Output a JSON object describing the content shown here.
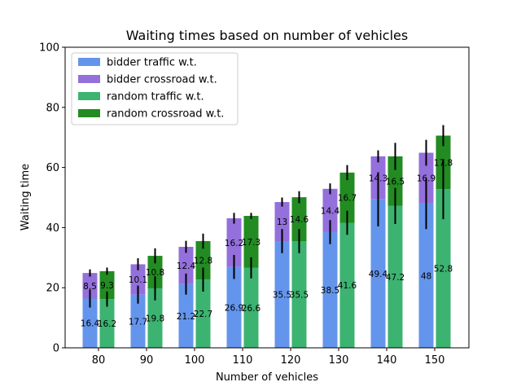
{
  "chart_data": {
    "type": "bar",
    "title": "Waiting times based on number of vehicles",
    "xlabel": "Number of vehicles",
    "ylabel": "Waiting time",
    "ylim": [
      0,
      100
    ],
    "yticks": [
      0,
      20,
      40,
      60,
      80,
      100
    ],
    "categories": [
      "80",
      "90",
      "100",
      "110",
      "120",
      "130",
      "140",
      "150"
    ],
    "legend_position": "upper-left",
    "grid": false,
    "groups": [
      {
        "name_bottom": "bidder traffic w.t.",
        "name_top": "bidder crossroad w.t.",
        "color_bottom": "#6495ED",
        "color_top": "#9370DB",
        "bottom_values": [
          16.4,
          17.7,
          21.2,
          26.9,
          35.5,
          38.5,
          49.4,
          48
        ],
        "top_values": [
          8.5,
          10.1,
          12.4,
          16.2,
          13,
          14.4,
          14.3,
          16.9
        ],
        "bottom_err": [
          3.0,
          3.0,
          3.5,
          4.0,
          4.0,
          4.0,
          9.0,
          8.5
        ],
        "top_err": [
          1.2,
          2.0,
          2.0,
          1.8,
          1.5,
          1.8,
          2.0,
          4.3
        ],
        "bottom_labels": [
          "16.4",
          "17.7",
          "21.2",
          "26.9",
          "35.5",
          "38.5",
          "49.4",
          "48"
        ],
        "top_labels": [
          "8.5",
          "10.1",
          "12.4",
          "16.2",
          "13",
          "14.4",
          "14.3",
          "16.9"
        ]
      },
      {
        "name_bottom": "random traffic w.t.",
        "name_top": "random crossroad w.t.",
        "color_bottom": "#3CB371",
        "color_top": "#228B22",
        "bottom_values": [
          16.2,
          19.8,
          22.7,
          26.6,
          35.5,
          41.6,
          47.2,
          52.8
        ],
        "top_values": [
          9.3,
          10.8,
          12.8,
          17.3,
          14.6,
          16.7,
          16.5,
          17.8
        ],
        "bottom_err": [
          2.5,
          4.0,
          4.0,
          3.5,
          4.0,
          4.0,
          6.0,
          10.0
        ],
        "top_err": [
          1.2,
          2.5,
          2.5,
          1.0,
          2.0,
          2.5,
          4.5,
          3.5
        ],
        "bottom_labels": [
          "16.2",
          "19.8",
          "22.7",
          "26.6",
          "35.5",
          "41.6",
          "47.2",
          "52.8"
        ],
        "top_labels": [
          "9.3",
          "10.8",
          "12.8",
          "17.3",
          "14.6",
          "16.7",
          "16.5",
          "17.8"
        ]
      }
    ]
  }
}
